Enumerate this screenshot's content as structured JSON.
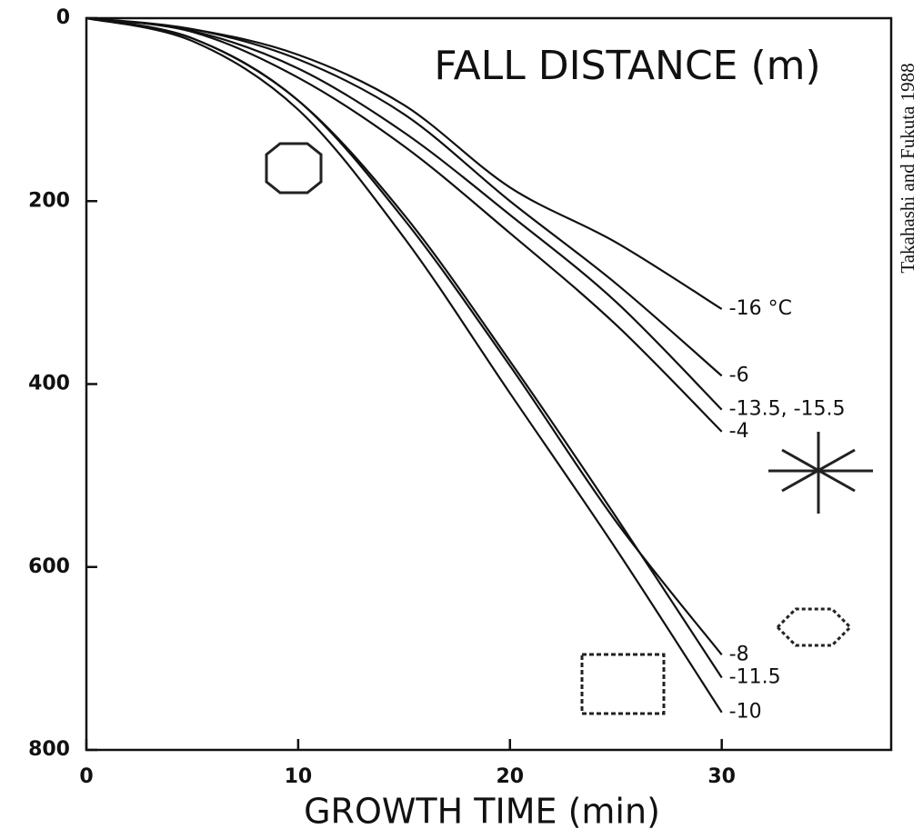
{
  "chart_data": {
    "type": "line",
    "title": "FALL DISTANCE (m)",
    "x_label": "GROWTH TIME (min)",
    "credit": "Takahashi and Fukuta 1988",
    "x": [
      0,
      5,
      10,
      15,
      20,
      25,
      30
    ],
    "series": [
      {
        "name": "-16 °C",
        "color": "#111111",
        "values": [
          0,
          12,
          40,
          95,
          185,
          245,
          318
        ]
      },
      {
        "name": "-6",
        "color": "#111111",
        "values": [
          0,
          12,
          45,
          105,
          200,
          290,
          391
        ]
      },
      {
        "name": "-13.5, -15.5",
        "color": "#111111",
        "values": [
          0,
          14,
          55,
          125,
          215,
          310,
          428
        ]
      },
      {
        "name": "-4",
        "color": "#111111",
        "values": [
          0,
          15,
          65,
          140,
          235,
          335,
          452
        ]
      },
      {
        "name": "-8",
        "color": "#111111",
        "values": [
          0,
          22,
          90,
          220,
          380,
          550,
          696
        ]
      },
      {
        "name": "-11.5",
        "color": "#111111",
        "values": [
          0,
          22,
          90,
          215,
          375,
          545,
          721
        ]
      },
      {
        "name": "-10",
        "color": "#111111",
        "values": [
          0,
          25,
          100,
          240,
          410,
          580,
          759
        ]
      }
    ],
    "xlim": [
      0,
      38
    ],
    "ylim": [
      0,
      800
    ],
    "y_inverted": true,
    "xticks": [
      0,
      10,
      20,
      30
    ],
    "yticks": [
      0,
      200,
      400,
      600,
      800
    ]
  }
}
